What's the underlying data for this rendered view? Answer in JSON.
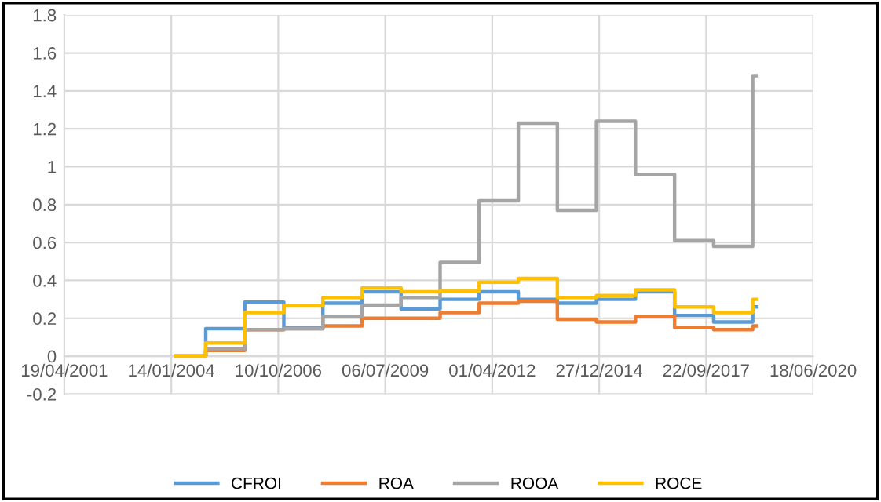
{
  "chart_data": {
    "type": "step",
    "x": [
      "2004-02-25",
      "2004-12-01",
      "2005-12-01",
      "2006-12-01",
      "2007-12-01",
      "2008-12-01",
      "2009-12-01",
      "2010-12-01",
      "2011-12-01",
      "2012-12-01",
      "2013-12-01",
      "2014-12-01",
      "2015-12-01",
      "2016-12-01",
      "2017-12-01",
      "2018-12-01",
      "2019-01-01"
    ],
    "series": [
      {
        "name": "CFROI",
        "color": "#5b9bd5",
        "values": [
          0,
          0.145,
          0.285,
          0.15,
          0.28,
          0.34,
          0.25,
          0.3,
          0.34,
          0.3,
          0.28,
          0.3,
          0.34,
          0.215,
          0.18,
          0.26,
          0.26
        ]
      },
      {
        "name": "ROA",
        "color": "#ed7d31",
        "values": [
          0,
          0.03,
          0.14,
          0.145,
          0.16,
          0.2,
          0.2,
          0.23,
          0.28,
          0.29,
          0.195,
          0.18,
          0.21,
          0.15,
          0.14,
          0.16,
          0.16
        ]
      },
      {
        "name": "ROOA",
        "color": "#a5a5a5",
        "values": [
          0,
          0.04,
          0.14,
          0.145,
          0.21,
          0.27,
          0.31,
          0.495,
          0.82,
          1.23,
          0.77,
          1.24,
          0.96,
          0.61,
          0.58,
          1.48,
          1.48
        ]
      },
      {
        "name": "ROCE",
        "color": "#ffc000",
        "values": [
          0,
          0.07,
          0.23,
          0.265,
          0.31,
          0.36,
          0.34,
          0.345,
          0.39,
          0.41,
          0.31,
          0.32,
          0.35,
          0.26,
          0.23,
          0.3,
          0.3
        ]
      }
    ],
    "xlim": [
      "2001-04-19",
      "2020-06-18"
    ],
    "xticks": [
      {
        "value": "2001-04-19",
        "label": "19/04/2001"
      },
      {
        "value": "2004-01-14",
        "label": "14/01/2004"
      },
      {
        "value": "2006-10-10",
        "label": "10/10/2006"
      },
      {
        "value": "2009-07-06",
        "label": "06/07/2009"
      },
      {
        "value": "2012-04-01",
        "label": "01/04/2012"
      },
      {
        "value": "2014-12-27",
        "label": "27/12/2014"
      },
      {
        "value": "2017-09-22",
        "label": "22/09/2017"
      },
      {
        "value": "2020-06-18",
        "label": "18/06/2020"
      }
    ],
    "ylim": [
      -0.2,
      1.8
    ],
    "yticks": [
      -0.2,
      0,
      0.2,
      0.4,
      0.6,
      0.8,
      1,
      1.2,
      1.4,
      1.6,
      1.8
    ],
    "grid": true,
    "legend": "bottom",
    "line_style": "solid",
    "marker": "none"
  }
}
